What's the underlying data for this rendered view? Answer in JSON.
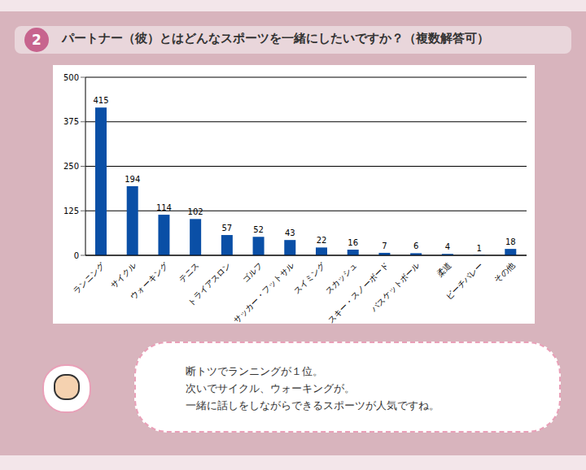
{
  "badge": "2",
  "title": "パートナー（彼）とはどんなスポーツを一緒にしたいですか？（複数解答可）",
  "annotations": [
    "断トツでランニングが１位。",
    "次いでサイクル、ウォーキングが。",
    "一緒に話しをしながらできるスポーツが人気ですね。"
  ],
  "chart_data": {
    "type": "bar",
    "categories": [
      "ランニング",
      "サイクル",
      "ウォーキング",
      "テニス",
      "トライアスロン",
      "ゴルフ",
      "サッカー・フットサル",
      "スイミング",
      "スカッシュ",
      "スキー・スノーボード",
      "バスケットボール",
      "柔道",
      "ビーチバレー",
      "その他"
    ],
    "values": [
      415,
      194,
      114,
      102,
      57,
      52,
      43,
      22,
      16,
      7,
      6,
      4,
      1,
      18
    ],
    "color": "#0a4fa6",
    "ylim": [
      0,
      500
    ],
    "yticks": [
      0,
      125,
      250,
      375,
      500
    ],
    "grid": true,
    "data_labels": true
  }
}
